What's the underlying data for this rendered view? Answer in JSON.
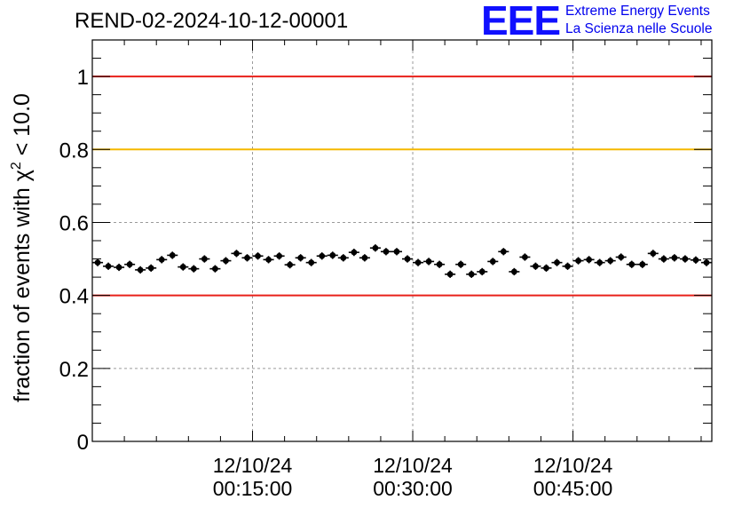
{
  "header": {
    "run_title": "REND-02-2024-10-12-00001",
    "logo_text": "EEE",
    "logo_line1": "Extreme Energy Events",
    "logo_line2": "La Scienza nelle Scuole"
  },
  "chart_data": {
    "type": "scatter",
    "title": "REND-02-2024-10-12-00001",
    "xlabel": "",
    "ylabel_main": "fraction of events with χ",
    "ylabel_sup": "2",
    "ylabel_tail": " < 10.0",
    "x_unit": "minutes after 12/10/24 00:00:00",
    "xlim": [
      0,
      58
    ],
    "ylim": [
      0,
      1.1
    ],
    "x_ticks": [
      {
        "x": 15,
        "date": "12/10/24",
        "time": "00:15:00"
      },
      {
        "x": 30,
        "date": "12/10/24",
        "time": "00:30:00"
      },
      {
        "x": 45,
        "date": "12/10/24",
        "time": "00:45:00"
      }
    ],
    "y_ticks": [
      0,
      0.2,
      0.4,
      0.6,
      0.8,
      1
    ],
    "y_tick_labels": [
      "0",
      "0.2",
      "0.4",
      "0.6",
      "0.8",
      "1"
    ],
    "grid": true,
    "reference_lines": [
      {
        "y": 1.0,
        "color": "#e8201a"
      },
      {
        "y": 0.8,
        "color": "#f5b800"
      },
      {
        "y": 0.4,
        "color": "#e8201a"
      }
    ],
    "marker_color": "#000000",
    "y_error": 0.01,
    "series": [
      {
        "x": [
          0.5,
          1.5,
          2.5,
          3.5,
          4.5,
          5.5,
          6.5,
          7.5,
          8.5,
          9.5,
          10.5,
          11.5,
          12.5,
          13.5,
          14.5,
          15.5,
          16.5,
          17.5,
          18.5,
          19.5,
          20.5,
          21.5,
          22.5,
          23.5,
          24.5,
          25.5,
          26.5,
          27.5,
          28.5,
          29.5,
          30.5,
          31.5,
          32.5,
          33.5,
          34.5,
          35.5,
          36.5,
          37.5,
          38.5,
          39.5,
          40.5,
          41.5,
          42.5,
          43.5,
          44.5,
          45.5,
          46.5,
          47.5,
          48.5,
          49.5,
          50.5,
          51.5,
          52.5,
          53.5,
          54.5,
          55.5,
          56.5,
          57.5
        ],
        "y": [
          0.49,
          0.48,
          0.477,
          0.485,
          0.47,
          0.475,
          0.498,
          0.51,
          0.478,
          0.473,
          0.5,
          0.473,
          0.495,
          0.515,
          0.503,
          0.508,
          0.498,
          0.508,
          0.484,
          0.503,
          0.49,
          0.508,
          0.51,
          0.503,
          0.518,
          0.503,
          0.53,
          0.52,
          0.52,
          0.5,
          0.49,
          0.493,
          0.485,
          0.458,
          0.485,
          0.458,
          0.465,
          0.493,
          0.52,
          0.465,
          0.505,
          0.48,
          0.475,
          0.49,
          0.48,
          0.495,
          0.498,
          0.49,
          0.495,
          0.505,
          0.485,
          0.485,
          0.515,
          0.5,
          0.503,
          0.5,
          0.497,
          0.49
        ]
      }
    ]
  }
}
